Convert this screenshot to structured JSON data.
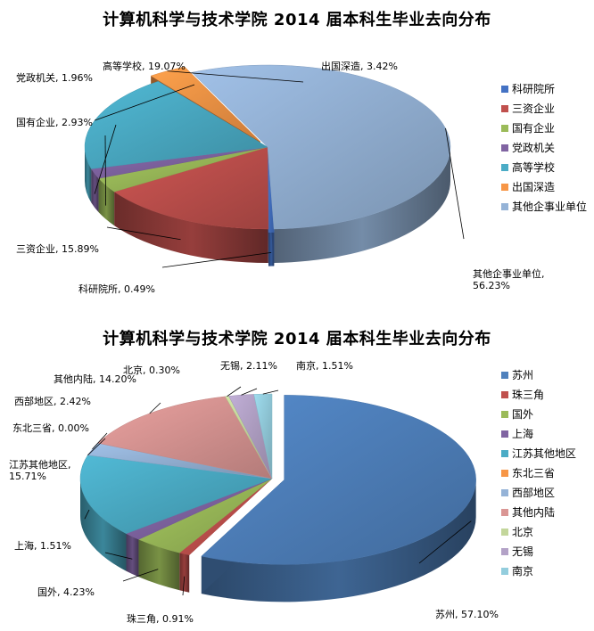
{
  "chart_data": [
    {
      "type": "pie",
      "title": "计算机科学与技术学院 2014 届本科生毕业去向分布",
      "legend_position": "right",
      "series": [
        {
          "name": "科研院所",
          "value": 0.49,
          "label": "科研院所, 0.49%",
          "color": "#4472C4"
        },
        {
          "name": "三资企业",
          "value": 15.89,
          "label": "三资企业, 15.89%",
          "color": "#C0504D"
        },
        {
          "name": "国有企业",
          "value": 2.93,
          "label": "国有企业, 2.93%",
          "color": "#9BBB59"
        },
        {
          "name": "党政机关",
          "value": 1.96,
          "label": "党政机关, 1.96%",
          "color": "#8064A2"
        },
        {
          "name": "高等学校",
          "value": 19.07,
          "label": "高等学校, 19.07%",
          "color": "#4BACC6"
        },
        {
          "name": "出国深造",
          "value": 3.42,
          "label": "出国深造, 3.42%",
          "color": "#F79646"
        },
        {
          "name": "其他企事业单位",
          "value": 56.23,
          "label_lines": [
            "其他企事业单位,",
            "56.23%"
          ],
          "color": "#95B3D7"
        }
      ]
    },
    {
      "type": "pie",
      "title": "计算机科学与技术学院 2014 届本科生毕业去向分布",
      "legend_position": "right",
      "series": [
        {
          "name": "苏州",
          "value": 57.1,
          "label": "苏州, 57.10%",
          "color": "#4F81BD"
        },
        {
          "name": "珠三角",
          "value": 0.91,
          "label": "珠三角, 0.91%",
          "color": "#C0504D"
        },
        {
          "name": "国外",
          "value": 4.23,
          "label": "国外, 4.23%",
          "color": "#9BBB59"
        },
        {
          "name": "上海",
          "value": 1.51,
          "label": "上海, 1.51%",
          "color": "#8064A2"
        },
        {
          "name": "江苏其他地区",
          "value": 15.71,
          "label_lines": [
            "江苏其他地区,",
            "15.71%"
          ],
          "color": "#4BACC6"
        },
        {
          "name": "东北三省",
          "value": 0.0,
          "label": "东北三省, 0.00%",
          "color": "#F79646"
        },
        {
          "name": "西部地区",
          "value": 2.42,
          "label": "西部地区, 2.42%",
          "color": "#95B3D7"
        },
        {
          "name": "其他内陆",
          "value": 14.2,
          "label": "其他内陆, 14.20%",
          "color": "#DA9694"
        },
        {
          "name": "北京",
          "value": 0.3,
          "label": "北京, 0.30%",
          "color": "#C3D69B"
        },
        {
          "name": "无锡",
          "value": 2.11,
          "label": "无锡, 2.11%",
          "color": "#B3A2C7"
        },
        {
          "name": "南京",
          "value": 1.51,
          "label": "南京, 1.51%",
          "color": "#93CDDD"
        }
      ]
    }
  ]
}
